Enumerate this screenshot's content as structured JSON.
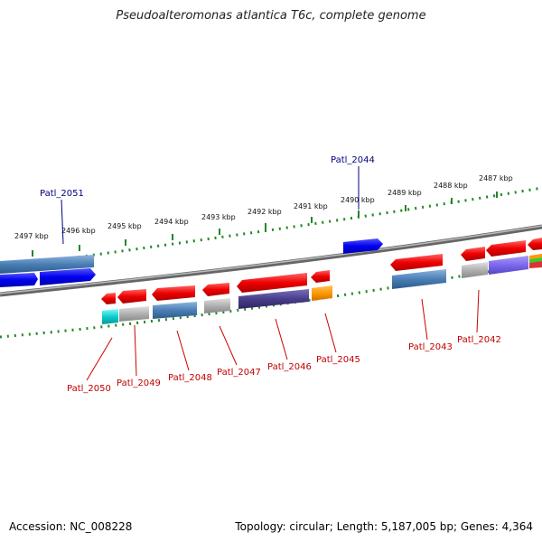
{
  "title": "Pseudoalteromonas atlantica T6c, complete genome",
  "footer": {
    "accession": "Accession: NC_008228",
    "topology": "Topology: circular; Length: 5,187,005 bp; Genes: 4,364"
  },
  "ticks": [
    {
      "label": "2497 kbp"
    },
    {
      "label": "2496 kbp"
    },
    {
      "label": "2495 kbp"
    },
    {
      "label": "2494 kbp"
    },
    {
      "label": "2493 kbp"
    },
    {
      "label": "2492 kbp"
    },
    {
      "label": "2491 kbp"
    },
    {
      "label": "2490 kbp"
    },
    {
      "label": "2489 kbp"
    },
    {
      "label": "2488 kbp"
    },
    {
      "label": "2487 kbp"
    }
  ],
  "gene_labels": [
    {
      "label": "Patl_2051",
      "color": "#000080"
    },
    {
      "label": "Patl_2044",
      "color": "#000080"
    },
    {
      "label": "Patl_2050",
      "color": "#c00000"
    },
    {
      "label": "Patl_2049",
      "color": "#c00000"
    },
    {
      "label": "Patl_2048",
      "color": "#c00000"
    },
    {
      "label": "Patl_2047",
      "color": "#c00000"
    },
    {
      "label": "Patl_2046",
      "color": "#c00000"
    },
    {
      "label": "Patl_2045",
      "color": "#c00000"
    },
    {
      "label": "Patl_2043",
      "color": "#c00000"
    },
    {
      "label": "Patl_2042",
      "color": "#c00000"
    }
  ],
  "colors": {
    "forward_gene": "#0000ee",
    "reverse_gene": "#ee0000",
    "backbone": "#888888",
    "tick": "#228822"
  }
}
